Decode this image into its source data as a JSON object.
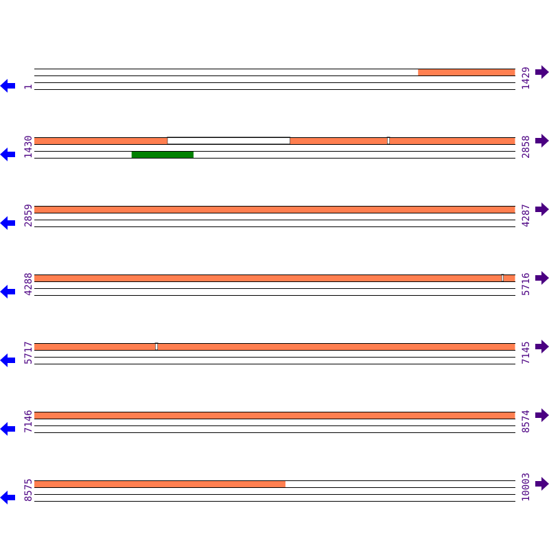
{
  "colors": {
    "feature": "#ff7f50",
    "green": "#008000",
    "line": "#000000",
    "label": "#4b0082",
    "left_arrow": "#0000ff",
    "right_arrow": "#4b0082",
    "gap": "#ffffff"
  },
  "icons": {
    "left": "arrow-left-icon",
    "right": "arrow-right-icon"
  },
  "row_span": 1429,
  "rows": [
    {
      "start": "1",
      "end": "1429",
      "s": 1,
      "orange": [
        [
          1141,
          1429
        ]
      ],
      "white": [],
      "green": []
    },
    {
      "start": "1430",
      "end": "2858",
      "s": 1430,
      "orange": [
        [
          1430,
          1825
        ],
        [
          2190,
          2478
        ],
        [
          2486,
          2858
        ]
      ],
      "white": [
        [
          1825,
          2190
        ],
        [
          2478,
          2486
        ]
      ],
      "green": [
        [
          1719,
          1903
        ]
      ]
    },
    {
      "start": "2859",
      "end": "4287",
      "s": 2859,
      "orange": [
        [
          2859,
          4287
        ]
      ],
      "white": [],
      "green": []
    },
    {
      "start": "4288",
      "end": "5716",
      "s": 4288,
      "orange": [
        [
          4288,
          5676
        ],
        [
          5682,
          5716
        ]
      ],
      "white": [
        [
          5676,
          5682
        ]
      ],
      "green": []
    },
    {
      "start": "5717",
      "end": "7145",
      "s": 5717,
      "orange": [
        [
          5717,
          6076
        ],
        [
          6084,
          7145
        ]
      ],
      "white": [
        [
          6076,
          6084
        ]
      ],
      "green": []
    },
    {
      "start": "7146",
      "end": "8574",
      "s": 7146,
      "orange": [
        [
          7146,
          8574
        ]
      ],
      "white": [],
      "green": []
    },
    {
      "start": "8575",
      "end": "10003",
      "s": 8575,
      "orange": [
        [
          8575,
          9321
        ]
      ],
      "white": [],
      "green": []
    }
  ]
}
